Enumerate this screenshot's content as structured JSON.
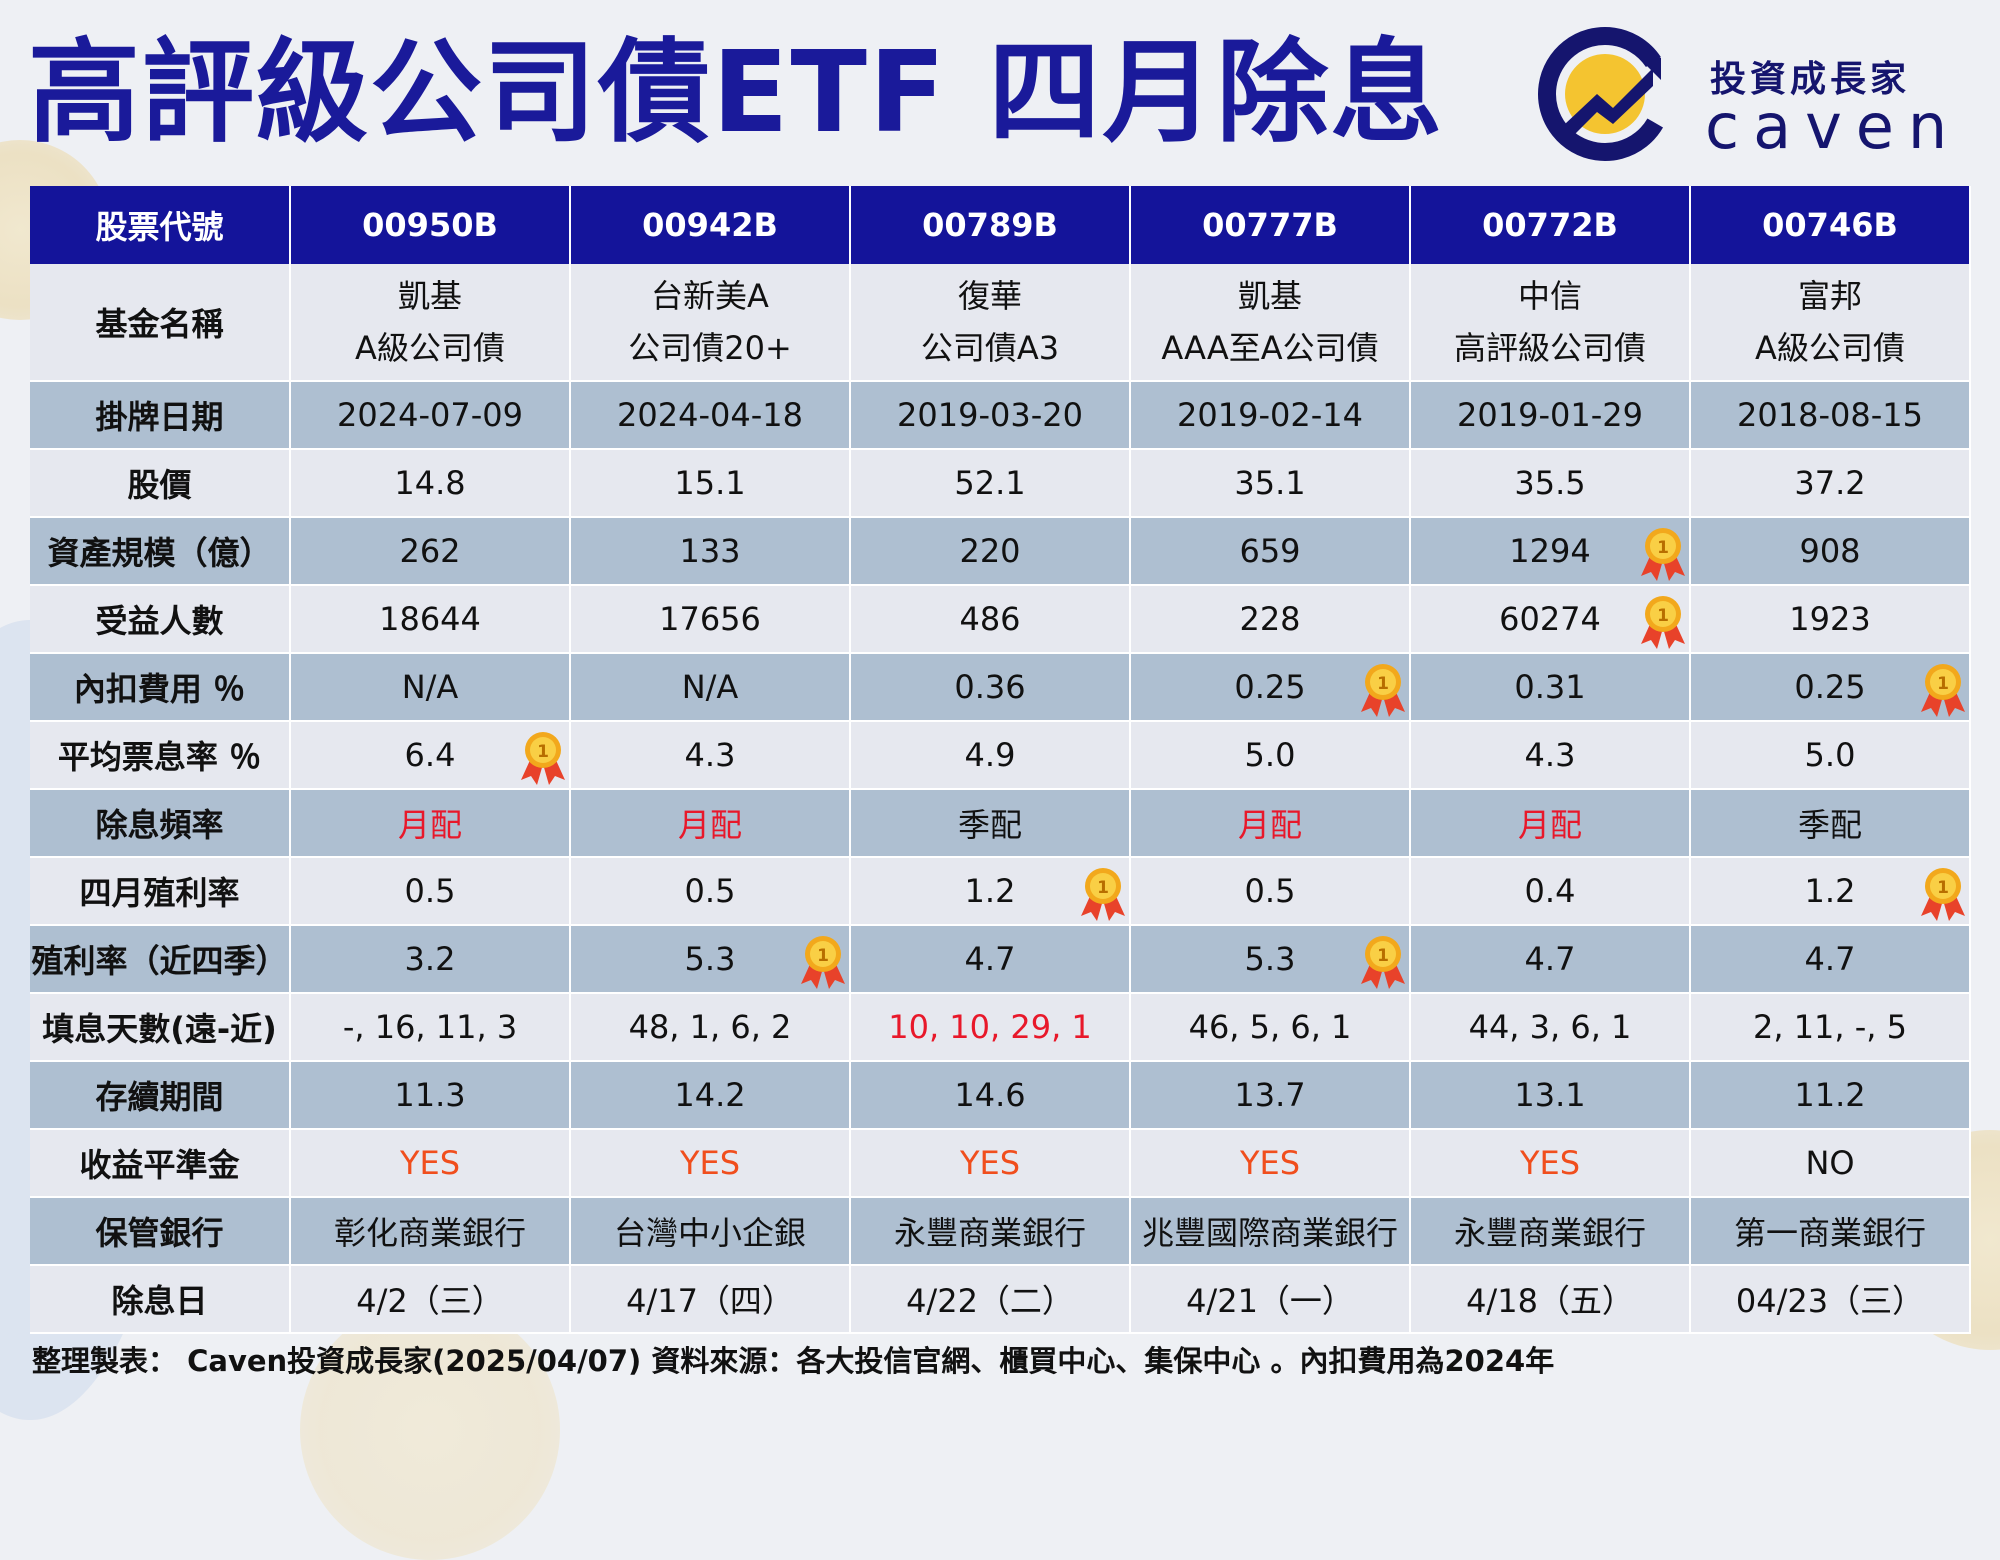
{
  "title": "高評級公司債ETF 四月除息",
  "logo": {
    "cn": "投資成長家",
    "en": "caven",
    "icon": "caven-logo-icon"
  },
  "medal_icon": "gold-medal-icon",
  "colors": {
    "header_bg": "#14149a",
    "row_light": "#e6e8ef",
    "row_dark": "#aebfd1",
    "title": "#1a1a9a",
    "highlight_red": "#e8182a",
    "highlight_orange": "#f04e1d"
  },
  "table": {
    "header_label": "股票代號",
    "codes": [
      "00950B",
      "00942B",
      "00789B",
      "00777B",
      "00772B",
      "00746B"
    ],
    "rows": [
      {
        "key": "fund_name",
        "label": "基金名稱",
        "tall": true,
        "cells": [
          {
            "lines": [
              "凱基",
              "A級公司債"
            ]
          },
          {
            "lines": [
              "台新美A",
              "公司債20+"
            ]
          },
          {
            "lines": [
              "復華",
              "公司債A3"
            ]
          },
          {
            "lines": [
              "凱基",
              "AAA至A公司債"
            ]
          },
          {
            "lines": [
              "中信",
              "高評級公司債"
            ]
          },
          {
            "lines": [
              "富邦",
              "A級公司債"
            ]
          }
        ]
      },
      {
        "key": "listing_date",
        "label": "掛牌日期",
        "cells": [
          {
            "text": "2024-07-09"
          },
          {
            "text": "2024-04-18"
          },
          {
            "text": "2019-03-20"
          },
          {
            "text": "2019-02-14"
          },
          {
            "text": "2019-01-29"
          },
          {
            "text": "2018-08-15"
          }
        ]
      },
      {
        "key": "price",
        "label": "股價",
        "cells": [
          {
            "text": "14.8"
          },
          {
            "text": "15.1"
          },
          {
            "text": "52.1"
          },
          {
            "text": "35.1"
          },
          {
            "text": "35.5"
          },
          {
            "text": "37.2"
          }
        ]
      },
      {
        "key": "aum",
        "label": "資產規模（億）",
        "cells": [
          {
            "text": "262"
          },
          {
            "text": "133"
          },
          {
            "text": "220"
          },
          {
            "text": "659"
          },
          {
            "text": "1294",
            "medal": true
          },
          {
            "text": "908"
          }
        ]
      },
      {
        "key": "holders",
        "label": "受益人數",
        "cells": [
          {
            "text": "18644"
          },
          {
            "text": "17656"
          },
          {
            "text": "486"
          },
          {
            "text": "228"
          },
          {
            "text": "60274",
            "medal": true
          },
          {
            "text": "1923"
          }
        ]
      },
      {
        "key": "expense",
        "label": "內扣費用 ％",
        "cells": [
          {
            "text": "N/A"
          },
          {
            "text": "N/A"
          },
          {
            "text": "0.36"
          },
          {
            "text": "0.25",
            "medal": true
          },
          {
            "text": "0.31"
          },
          {
            "text": "0.25",
            "medal": true
          }
        ]
      },
      {
        "key": "coupon",
        "label": "平均票息率 ％",
        "cells": [
          {
            "text": "6.4",
            "medal": true
          },
          {
            "text": "4.3"
          },
          {
            "text": "4.9"
          },
          {
            "text": "5.0"
          },
          {
            "text": "4.3"
          },
          {
            "text": "5.0"
          }
        ]
      },
      {
        "key": "frequency",
        "label": "除息頻率",
        "cells": [
          {
            "text": "月配",
            "color": "red"
          },
          {
            "text": "月配",
            "color": "red"
          },
          {
            "text": "季配"
          },
          {
            "text": "月配",
            "color": "red"
          },
          {
            "text": "月配",
            "color": "red"
          },
          {
            "text": "季配"
          }
        ]
      },
      {
        "key": "april_yield",
        "label": "四月殖利率",
        "cells": [
          {
            "text": "0.5"
          },
          {
            "text": "0.5"
          },
          {
            "text": "1.2",
            "medal": true
          },
          {
            "text": "0.5"
          },
          {
            "text": "0.4"
          },
          {
            "text": "1.2",
            "medal": true
          }
        ]
      },
      {
        "key": "ttm_yield",
        "label": "殖利率（近四季）",
        "cells": [
          {
            "text": "3.2"
          },
          {
            "text": "5.3",
            "medal": true
          },
          {
            "text": "4.7"
          },
          {
            "text": "5.3",
            "medal": true
          },
          {
            "text": "4.7"
          },
          {
            "text": "4.7"
          }
        ]
      },
      {
        "key": "fill_days",
        "label": "填息天數(遠-近)",
        "cells": [
          {
            "text": "-, 16, 11, 3"
          },
          {
            "text": "48, 1, 6, 2"
          },
          {
            "text": "10, 10, 29, 1",
            "color": "red"
          },
          {
            "text": "46, 5, 6, 1"
          },
          {
            "text": "44, 3, 6, 1"
          },
          {
            "text": "2, 11, -, 5"
          }
        ]
      },
      {
        "key": "duration",
        "label": "存續期間",
        "cells": [
          {
            "text": "11.3"
          },
          {
            "text": "14.2"
          },
          {
            "text": "14.6"
          },
          {
            "text": "13.7"
          },
          {
            "text": "13.1"
          },
          {
            "text": "11.2"
          }
        ]
      },
      {
        "key": "equalization",
        "label": "收益平準金",
        "cells": [
          {
            "text": "YES",
            "color": "orange"
          },
          {
            "text": "YES",
            "color": "orange"
          },
          {
            "text": "YES",
            "color": "orange"
          },
          {
            "text": "YES",
            "color": "orange"
          },
          {
            "text": "YES",
            "color": "orange"
          },
          {
            "text": "NO"
          }
        ]
      },
      {
        "key": "custodian",
        "label": "保管銀行",
        "cells": [
          {
            "text": "彰化商業銀行"
          },
          {
            "text": "台灣中小企銀"
          },
          {
            "text": "永豐商業銀行"
          },
          {
            "text": "兆豐國際商業銀行"
          },
          {
            "text": "永豐商業銀行"
          },
          {
            "text": "第一商業銀行"
          }
        ]
      },
      {
        "key": "ex_date",
        "label": "除息日",
        "cells": [
          {
            "text": "4/2（三）"
          },
          {
            "text": "4/17（四）"
          },
          {
            "text": "4/22（二）"
          },
          {
            "text": "4/21（一）"
          },
          {
            "text": "4/18（五）"
          },
          {
            "text": "04/23（三）"
          }
        ]
      }
    ]
  },
  "footer": "整理製表： Caven投資成長家(2025/04/07) 資料來源：各大投信官網、櫃買中心、集保中心 。內扣費用為2024年"
}
